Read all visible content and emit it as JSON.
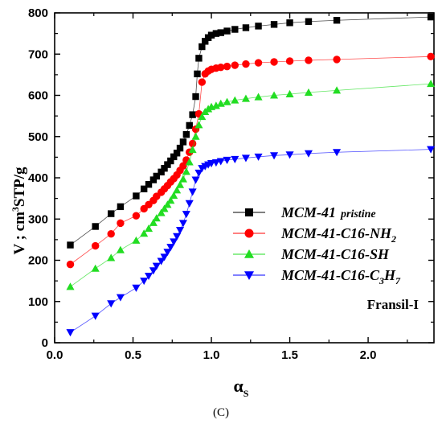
{
  "chart_data": {
    "type": "scatter",
    "xlabel": "α",
    "xlabel_sub": "S",
    "ylabel": "V ; cm",
    "ylabel_sup": "3",
    "ylabel_rest": "STP/g",
    "xlim": [
      0,
      2.42
    ],
    "ylim": [
      0,
      800
    ],
    "x_ticks": [
      "0.0",
      "0.5",
      "1.0",
      "1.5",
      "2.0"
    ],
    "y_ticks": [
      "0",
      "100",
      "200",
      "300",
      "400",
      "500",
      "600",
      "700",
      "800"
    ],
    "annotation": "Fransil-I",
    "caption": "(C)",
    "legend_position": "center-right",
    "grid": false,
    "series": [
      {
        "name": "MCM-41",
        "name_sub": "pristine",
        "color": "#000000",
        "marker": "square",
        "x": [
          0.1,
          0.26,
          0.36,
          0.42,
          0.52,
          0.57,
          0.6,
          0.63,
          0.65,
          0.68,
          0.7,
          0.72,
          0.74,
          0.76,
          0.78,
          0.8,
          0.82,
          0.84,
          0.86,
          0.88,
          0.9,
          0.91,
          0.92,
          0.94,
          0.96,
          0.98,
          1.0,
          1.03,
          1.06,
          1.1,
          1.15,
          1.22,
          1.3,
          1.4,
          1.5,
          1.62,
          1.8,
          2.4
        ],
        "y": [
          237,
          282,
          313,
          330,
          356,
          373,
          384,
          395,
          404,
          414,
          423,
          432,
          441,
          451,
          460,
          472,
          487,
          505,
          527,
          553,
          597,
          652,
          690,
          718,
          731,
          740,
          746,
          750,
          752,
          756,
          760,
          764,
          768,
          772,
          776,
          779,
          782,
          790
        ]
      },
      {
        "name": "MCM-41-C16-NH",
        "name_sub": "2",
        "color": "#ff0000",
        "marker": "circle",
        "x": [
          0.1,
          0.26,
          0.36,
          0.42,
          0.52,
          0.57,
          0.6,
          0.63,
          0.65,
          0.68,
          0.7,
          0.72,
          0.74,
          0.76,
          0.78,
          0.8,
          0.82,
          0.84,
          0.86,
          0.88,
          0.9,
          0.92,
          0.94,
          0.96,
          0.98,
          1.0,
          1.03,
          1.06,
          1.1,
          1.15,
          1.22,
          1.3,
          1.4,
          1.5,
          1.62,
          1.8,
          2.4
        ],
        "y": [
          190,
          235,
          264,
          290,
          308,
          325,
          335,
          345,
          355,
          365,
          373,
          381,
          390,
          398,
          407,
          418,
          429,
          443,
          462,
          483,
          518,
          555,
          632,
          652,
          659,
          663,
          666,
          668,
          670,
          673,
          676,
          679,
          681,
          683,
          685,
          687,
          694
        ]
      },
      {
        "name": "MCM-41-C16-SH",
        "name_sub": "",
        "color": "#22dd22",
        "marker": "triangle-up",
        "x": [
          0.1,
          0.26,
          0.36,
          0.42,
          0.52,
          0.57,
          0.6,
          0.63,
          0.65,
          0.68,
          0.7,
          0.72,
          0.74,
          0.76,
          0.78,
          0.8,
          0.82,
          0.84,
          0.86,
          0.88,
          0.9,
          0.92,
          0.94,
          0.96,
          0.98,
          1.0,
          1.03,
          1.06,
          1.1,
          1.15,
          1.22,
          1.3,
          1.4,
          1.5,
          1.62,
          1.8,
          2.4
        ],
        "y": [
          136,
          180,
          206,
          225,
          248,
          265,
          277,
          291,
          302,
          315,
          325,
          335,
          345,
          357,
          370,
          383,
          397,
          415,
          438,
          468,
          500,
          528,
          548,
          560,
          567,
          572,
          575,
          580,
          584,
          588,
          592,
          596,
          600,
          603,
          607,
          612,
          628
        ]
      },
      {
        "name": "MCM-41-C16-C",
        "name_sub": "3",
        "name_rest": "H",
        "name_sub2": "7",
        "color": "#0000ff",
        "marker": "triangle-down",
        "x": [
          0.1,
          0.26,
          0.36,
          0.42,
          0.52,
          0.57,
          0.6,
          0.63,
          0.65,
          0.68,
          0.7,
          0.72,
          0.74,
          0.76,
          0.78,
          0.8,
          0.82,
          0.84,
          0.86,
          0.88,
          0.9,
          0.92,
          0.94,
          0.96,
          0.98,
          1.0,
          1.03,
          1.06,
          1.1,
          1.15,
          1.22,
          1.3,
          1.4,
          1.5,
          1.62,
          1.8,
          2.4
        ],
        "y": [
          25,
          65,
          95,
          110,
          133,
          150,
          162,
          175,
          186,
          198,
          208,
          220,
          232,
          245,
          258,
          273,
          290,
          312,
          338,
          366,
          395,
          412,
          423,
          428,
          432,
          435,
          437,
          440,
          443,
          445,
          448,
          451,
          454,
          456,
          459,
          462,
          469
        ]
      }
    ]
  }
}
